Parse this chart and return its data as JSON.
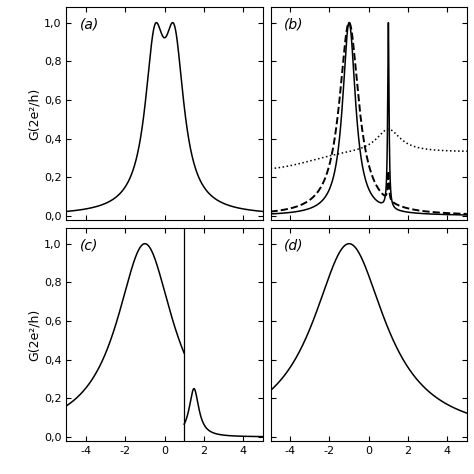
{
  "xlim": [
    -5,
    5
  ],
  "ylim": [
    -0.02,
    1.08
  ],
  "yticks": [
    0.0,
    0.2,
    0.4,
    0.6,
    0.8,
    1.0
  ],
  "ytick_labels": [
    "0,0",
    "0,2",
    "0,4",
    "0,6",
    "0,8",
    "1,0"
  ],
  "xticks": [
    -4,
    -2,
    0,
    2,
    4
  ],
  "panels": [
    "(a)",
    "(b)",
    "(c)",
    "(d)"
  ],
  "ylabel": "G(2e²/h)",
  "background_color": "#ffffff",
  "line_color": "#000000"
}
